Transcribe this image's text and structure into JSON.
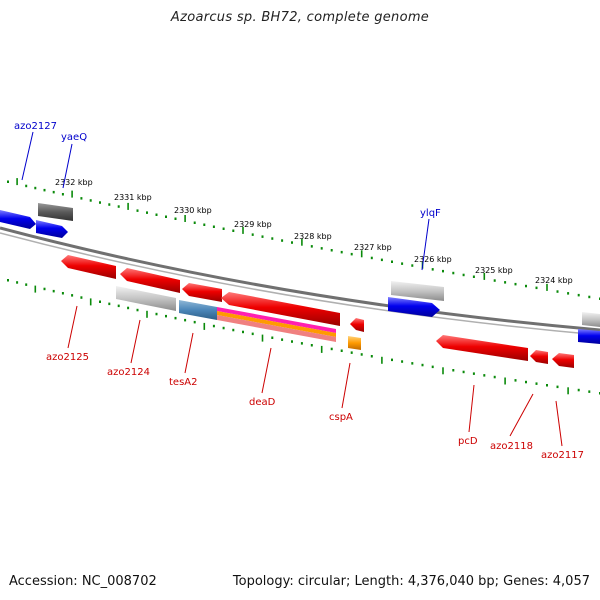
{
  "title": "Azoarcus sp. BH72, complete genome",
  "footer": {
    "accession": "Accession: NC_008702",
    "summary": "Topology: circular; Length: 4,376,040 bp; Genes: 4,057"
  },
  "colors": {
    "forward_gene": "#ff0000",
    "reverse_gene": "#0000ff",
    "pseudo_gene": "#bdbdbd",
    "dark_gene": "#5a5a5a",
    "tick": "#0a8a0a",
    "backbone": "#6e6e6e",
    "upper_label": "#0000cc",
    "lower_label": "#cc0000"
  },
  "kbp_ticks": [
    "2332 kbp",
    "2331 kbp",
    "2330 kbp",
    "2329 kbp",
    "2328 kbp",
    "2327 kbp",
    "2326 kbp",
    "2325 kbp",
    "2324 kbp"
  ],
  "upper_labels": [
    "azo2127",
    "yaeQ",
    "ylqF"
  ],
  "lower_labels": [
    "azo2125",
    "azo2124",
    "tesA2",
    "deaD",
    "cspA",
    "pcD",
    "azo2118",
    "azo2117"
  ]
}
